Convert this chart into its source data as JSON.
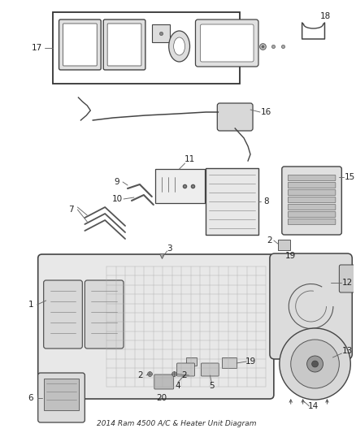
{
  "title": "2014 Ram 4500 A/C & Heater Unit Diagram",
  "background_color": "#ffffff",
  "figsize": [
    4.38,
    5.33
  ],
  "dpi": 100
}
